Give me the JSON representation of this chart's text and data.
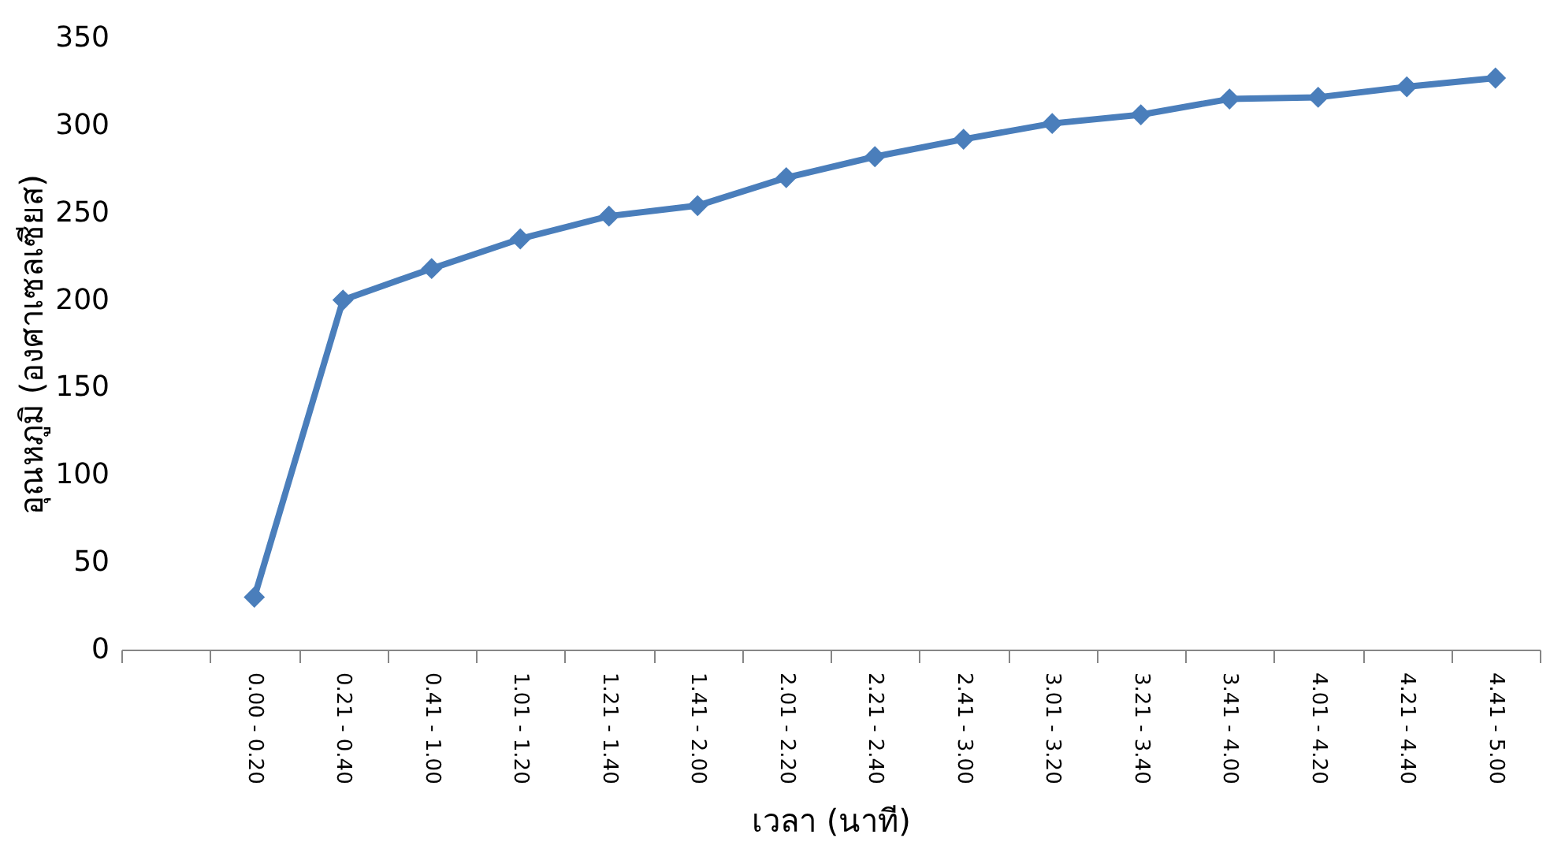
{
  "chart_data": {
    "type": "line",
    "xlabel": "เวลา (นาที)",
    "ylabel": "อุณหภูมิ (องศาเซลเซียส)",
    "categories": [
      null,
      "0.00 - 0.20",
      "0.21 - 0.40",
      "0.41 - 1.00",
      "1.01 - 1.20",
      "1.21 - 1.40",
      "1.41 - 2.00",
      "2.01 - 2.20",
      "2.21 - 2.40",
      "2.41 - 3.00",
      "3.01 - 3.20",
      "3.21 - 3.40",
      "3.41 - 4.00",
      "4.01 - 4.20",
      "4.21 - 4.40",
      "4.41 - 5.00"
    ],
    "series": [
      {
        "color": "#4a7ebb",
        "values": [
          null,
          30,
          200,
          218,
          235,
          248,
          254,
          270,
          282,
          292,
          301,
          306,
          315,
          316,
          322,
          327
        ]
      }
    ],
    "ylim": [
      0,
      350
    ],
    "yticks": [
      0,
      50,
      100,
      150,
      200,
      250,
      300,
      350
    ],
    "grid": false,
    "legend": false,
    "marker": "diamond",
    "line_style": "solid"
  }
}
